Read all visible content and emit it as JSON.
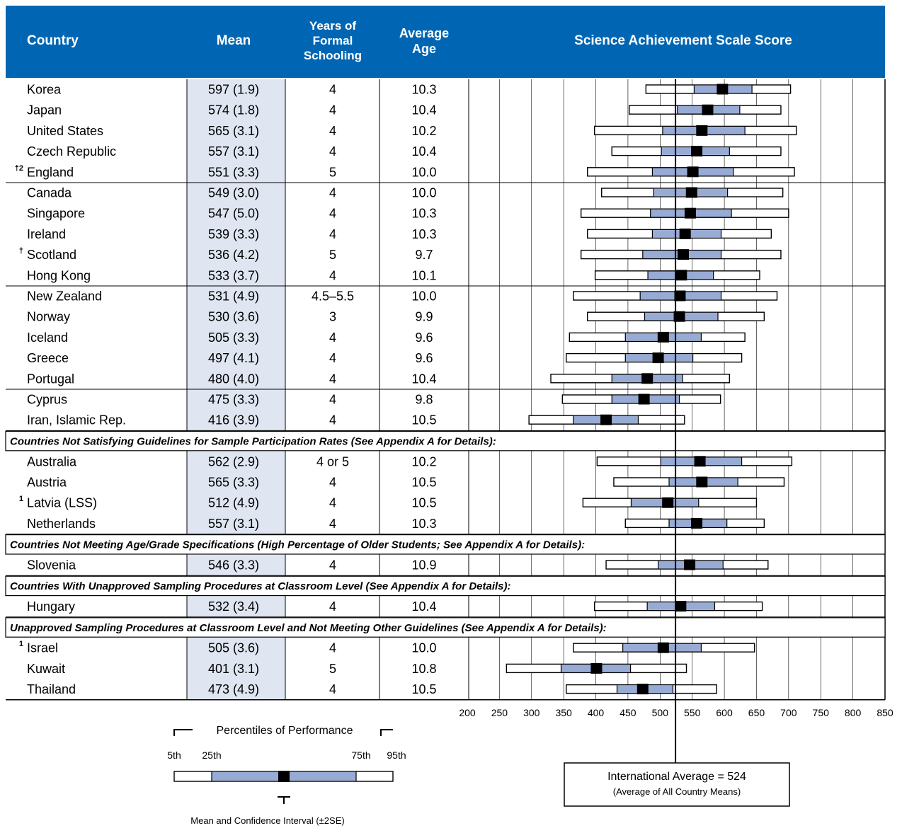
{
  "header": {
    "country": "Country",
    "mean": "Mean",
    "years_of_schooling": [
      "Years of",
      "Formal",
      "Schooling"
    ],
    "average_age": [
      "Average",
      "Age"
    ],
    "scale": "Science Achievement Scale Score"
  },
  "colors": {
    "header_bg": "#0066b3",
    "mean_col_bg": "#dfe6f2",
    "iqr_fill": "#98abd5",
    "ci_fill": "#000000"
  },
  "groups": [
    {
      "caption": "",
      "rows": [
        {
          "marker": "",
          "country": "Korea",
          "mean": "597 (1.9)",
          "years": "4",
          "age": "10.3",
          "p5": 478,
          "p25": 553,
          "m": 597,
          "p75": 643,
          "p95": 703
        },
        {
          "marker": "",
          "country": "Japan",
          "mean": "574 (1.8)",
          "years": "4",
          "age": "10.4",
          "p5": 452,
          "p25": 527,
          "m": 574,
          "p75": 624,
          "p95": 688
        },
        {
          "marker": "",
          "country": "United States",
          "mean": "565 (3.1)",
          "years": "4",
          "age": "10.2",
          "p5": 398,
          "p25": 504,
          "m": 565,
          "p75": 632,
          "p95": 712
        },
        {
          "marker": "",
          "country": "Czech Republic",
          "mean": "557 (3.1)",
          "years": "4",
          "age": "10.4",
          "p5": 425,
          "p25": 502,
          "m": 557,
          "p75": 608,
          "p95": 688
        },
        {
          "marker": "†2",
          "country": "England",
          "mean": "551 (3.3)",
          "years": "5",
          "age": "10.0",
          "p5": 387,
          "p25": 488,
          "m": 551,
          "p75": 614,
          "p95": 709
        }
      ]
    },
    {
      "caption": "",
      "rows": [
        {
          "marker": "",
          "country": "Canada",
          "mean": "549 (3.0)",
          "years": "4",
          "age": "10.0",
          "p5": 409,
          "p25": 490,
          "m": 549,
          "p75": 605,
          "p95": 691
        },
        {
          "marker": "",
          "country": "Singapore",
          "mean": "547 (5.0)",
          "years": "4",
          "age": "10.3",
          "p5": 377,
          "p25": 485,
          "m": 547,
          "p75": 611,
          "p95": 700
        },
        {
          "marker": "",
          "country": "Ireland",
          "mean": "539 (3.3)",
          "years": "4",
          "age": "10.3",
          "p5": 387,
          "p25": 488,
          "m": 539,
          "p75": 595,
          "p95": 673
        },
        {
          "marker": "†",
          "country": "Scotland",
          "mean": "536 (4.2)",
          "years": "5",
          "age": "9.7",
          "p5": 377,
          "p25": 473,
          "m": 536,
          "p75": 595,
          "p95": 688
        },
        {
          "marker": "",
          "country": "Hong Kong",
          "mean": "533 (3.7)",
          "years": "4",
          "age": "10.1",
          "p5": 399,
          "p25": 481,
          "m": 533,
          "p75": 583,
          "p95": 655
        }
      ]
    },
    {
      "caption": "",
      "rows": [
        {
          "marker": "",
          "country": "New Zealand",
          "mean": "531 (4.9)",
          "years": "4.5–5.5",
          "age": "10.0",
          "p5": 365,
          "p25": 469,
          "m": 531,
          "p75": 595,
          "p95": 682
        },
        {
          "marker": "",
          "country": "Norway",
          "mean": "530 (3.6)",
          "years": "3",
          "age": "9.9",
          "p5": 387,
          "p25": 476,
          "m": 530,
          "p75": 590,
          "p95": 662
        },
        {
          "marker": "",
          "country": "Iceland",
          "mean": "505 (3.3)",
          "years": "4",
          "age": "9.6",
          "p5": 359,
          "p25": 446,
          "m": 505,
          "p75": 564,
          "p95": 632
        },
        {
          "marker": "",
          "country": "Greece",
          "mean": "497 (4.1)",
          "years": "4",
          "age": "9.6",
          "p5": 354,
          "p25": 446,
          "m": 497,
          "p75": 551,
          "p95": 627
        },
        {
          "marker": "",
          "country": "Portugal",
          "mean": "480 (4.0)",
          "years": "4",
          "age": "10.4",
          "p5": 330,
          "p25": 425,
          "m": 480,
          "p75": 535,
          "p95": 608
        }
      ]
    },
    {
      "caption": "",
      "rows": [
        {
          "marker": "",
          "country": "Cyprus",
          "mean": "475 (3.3)",
          "years": "4",
          "age": "9.8",
          "p5": 348,
          "p25": 425,
          "m": 475,
          "p75": 530,
          "p95": 594
        },
        {
          "marker": "",
          "country": "Iran, Islamic Rep.",
          "mean": "416 (3.9)",
          "years": "4",
          "age": "10.5",
          "p5": 296,
          "p25": 365,
          "m": 416,
          "p75": 466,
          "p95": 538
        }
      ]
    },
    {
      "caption": "Countries Not Satisfying Guidelines for Sample Participation Rates (See Appendix A for Details):",
      "rows": [
        {
          "marker": "",
          "country": "Australia",
          "mean": "562 (2.9)",
          "years": "4 or 5",
          "age": "10.2",
          "p5": 402,
          "p25": 501,
          "m": 562,
          "p75": 627,
          "p95": 705
        },
        {
          "marker": "",
          "country": "Austria",
          "mean": "565 (3.3)",
          "years": "4",
          "age": "10.5",
          "p5": 428,
          "p25": 514,
          "m": 565,
          "p75": 621,
          "p95": 693
        },
        {
          "marker": "1",
          "country": "Latvia (LSS)",
          "mean": "512 (4.9)",
          "years": "4",
          "age": "10.5",
          "p5": 380,
          "p25": 455,
          "m": 512,
          "p75": 560,
          "p95": 650
        },
        {
          "marker": "",
          "country": "Netherlands",
          "mean": "557 (3.1)",
          "years": "4",
          "age": "10.3",
          "p5": 446,
          "p25": 514,
          "m": 557,
          "p75": 604,
          "p95": 662
        }
      ]
    },
    {
      "caption": "Countries Not Meeting Age/Grade Specifications (High Percentage of Older Students; See Appendix A for Details):",
      "rows": [
        {
          "marker": "",
          "country": "Slovenia",
          "mean": "546 (3.3)",
          "years": "4",
          "age": "10.9",
          "p5": 416,
          "p25": 497,
          "m": 546,
          "p75": 598,
          "p95": 668
        }
      ]
    },
    {
      "caption": "Countries With Unapproved Sampling Procedures at Classroom Level (See Appendix A for Details):",
      "rows": [
        {
          "marker": "",
          "country": "Hungary",
          "mean": "532 (3.4)",
          "years": "4",
          "age": "10.4",
          "p5": 398,
          "p25": 480,
          "m": 532,
          "p75": 585,
          "p95": 659
        }
      ]
    },
    {
      "caption": "Unapproved Sampling Procedures at Classroom Level and Not Meeting Other Guidelines (See Appendix A for Details):",
      "rows": [
        {
          "marker": "1",
          "country": "Israel",
          "mean": "505 (3.6)",
          "years": "4",
          "age": "10.0",
          "p5": 365,
          "p25": 442,
          "m": 505,
          "p75": 564,
          "p95": 647
        },
        {
          "marker": "",
          "country": "Kuwait",
          "mean": "401 (3.1)",
          "years": "5",
          "age": "10.8",
          "p5": 261,
          "p25": 346,
          "m": 401,
          "p75": 454,
          "p95": 541
        },
        {
          "marker": "",
          "country": "Thailand",
          "mean": "473 (4.9)",
          "years": "4",
          "age": "10.5",
          "p5": 354,
          "p25": 433,
          "m": 473,
          "p75": 520,
          "p95": 588
        }
      ]
    }
  ],
  "chart_data": {
    "type": "bar",
    "title": "Science Achievement Scale Score",
    "xlim": [
      200,
      850
    ],
    "ticks": [
      200,
      250,
      300,
      350,
      400,
      450,
      500,
      550,
      600,
      650,
      700,
      750,
      800,
      850
    ],
    "international_average": 524,
    "grid": true
  },
  "footer": {
    "average_label": "International Average = 524",
    "average_sub": "(Average of All Country Means)",
    "legend_title": "Percentiles of Performance",
    "pct_labels": [
      "5th",
      "25th",
      "75th",
      "95th"
    ],
    "legend_ci": "Mean and Confidence Interval (±2SE)"
  }
}
